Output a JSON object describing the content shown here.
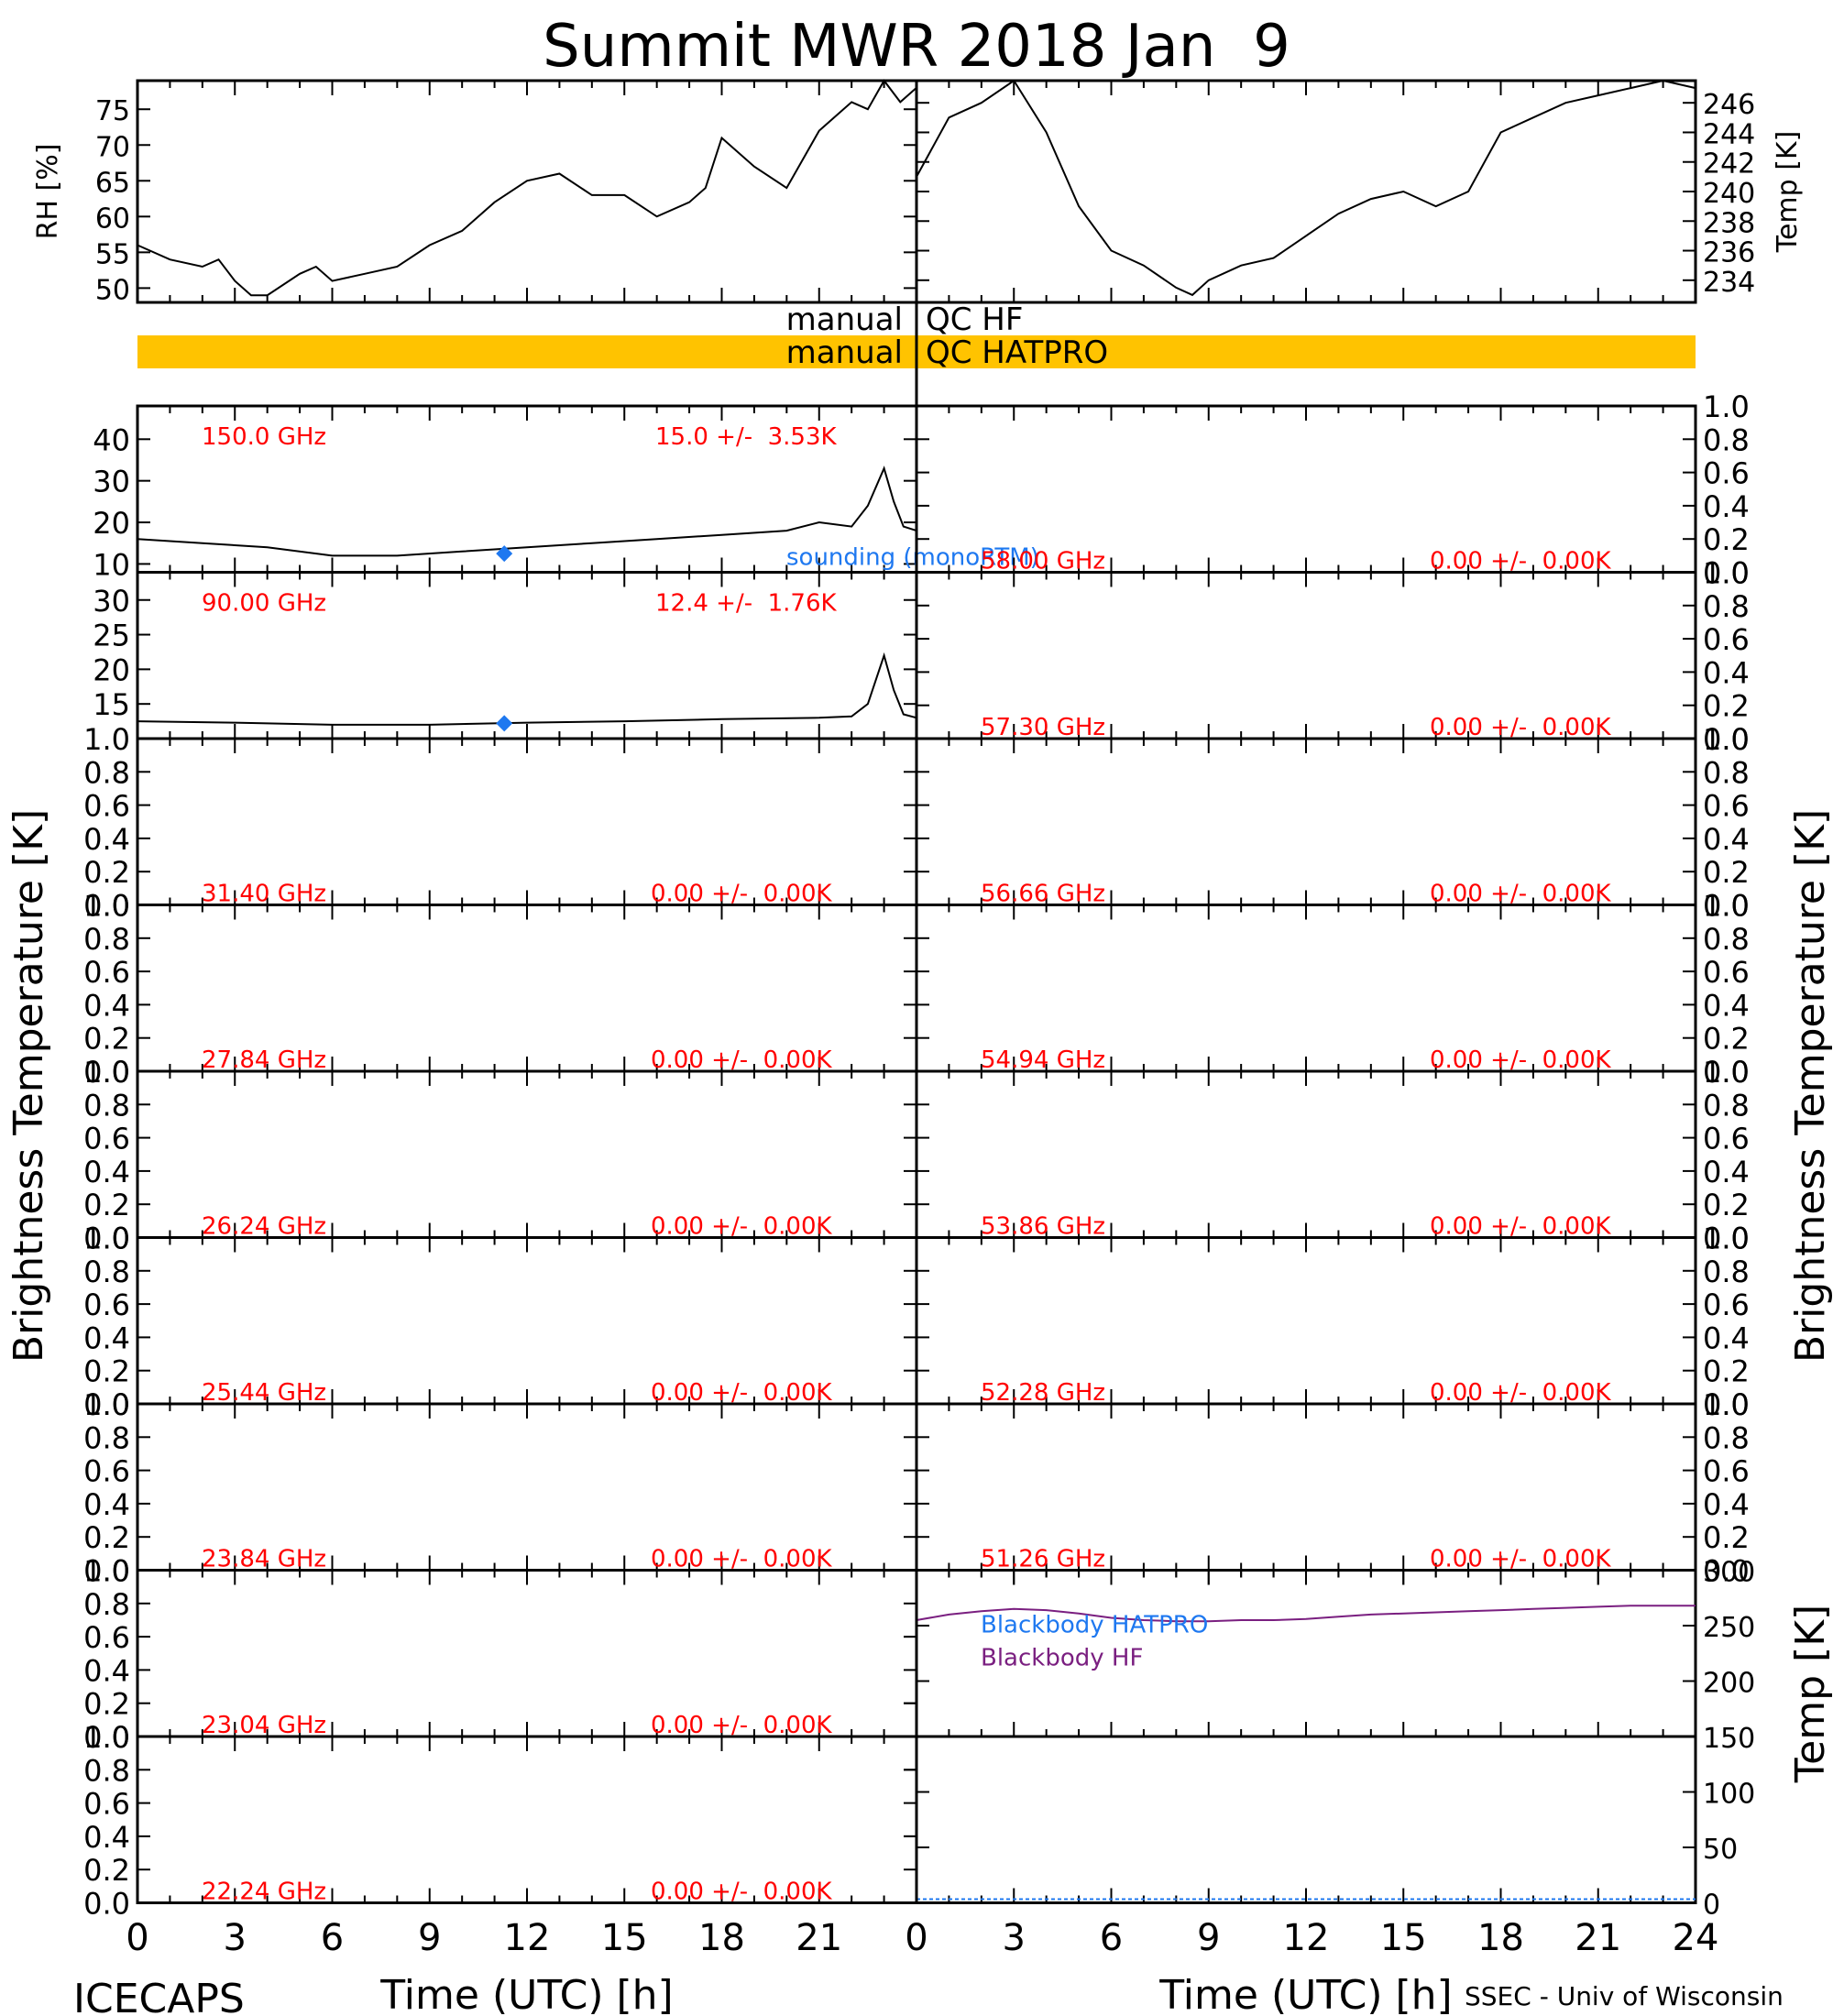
{
  "title": "Summit MWR 2018 Jan  9",
  "footer": {
    "left": "ICECAPS",
    "right": "SSEC - Univ of Wisconsin"
  },
  "axes": {
    "xlabel": "Time (UTC) [h]",
    "left_ticks": [
      "0",
      "3",
      "6",
      "9",
      "12",
      "15",
      "18",
      "21"
    ],
    "right_ticks": [
      "0",
      "3",
      "6",
      "9",
      "12",
      "15",
      "18",
      "21",
      "24"
    ],
    "bt_label": "Brightness Temperature [K]"
  },
  "qc": {
    "hf_left": "manual",
    "hf_right": "QC HF",
    "hatpro_left": "manual",
    "hatpro_right": "QC HATPRO",
    "hatpro_color": "#ffc300"
  },
  "colors": {
    "freq_text": "#ff0000",
    "sounding": "#1e78f0",
    "blackbody_hf": "#7a1f80"
  },
  "chart_data": [
    {
      "type": "line",
      "panel": "rh",
      "ylabel": "RH [%]",
      "ylim": [
        48,
        79
      ],
      "yticks": [
        "50",
        "55",
        "60",
        "65",
        "70",
        "75"
      ],
      "x": [
        0,
        1,
        2,
        2.5,
        3,
        3.5,
        4,
        5,
        5.5,
        6,
        7,
        8,
        9,
        10,
        11,
        12,
        13,
        14,
        15,
        16,
        17,
        17.5,
        18,
        19,
        20,
        21,
        22,
        22.5,
        23,
        23.5,
        24
      ],
      "y": [
        56,
        54,
        53,
        54,
        51,
        49,
        49,
        52,
        53,
        51,
        52,
        53,
        56,
        58,
        62,
        65,
        66,
        63,
        63,
        60,
        62,
        64,
        71,
        67,
        64,
        72,
        76,
        75,
        79,
        76,
        78
      ]
    },
    {
      "type": "line",
      "panel": "temp",
      "ylabel": "Temp [K]",
      "ylim": [
        232.5,
        247.5
      ],
      "yticks": [
        "234",
        "236",
        "238",
        "240",
        "242",
        "244",
        "246"
      ],
      "x": [
        0,
        1,
        2,
        3,
        4,
        5,
        6,
        7,
        8,
        8.5,
        9,
        10,
        11,
        12,
        13,
        14,
        15,
        16,
        17,
        18,
        19,
        20,
        21,
        22,
        23,
        24
      ],
      "y": [
        241,
        245,
        246,
        247.5,
        244,
        239,
        236,
        235,
        233.5,
        233,
        234,
        235,
        235.5,
        237,
        238.5,
        239.5,
        240,
        239,
        240,
        244,
        245,
        246,
        246.5,
        247,
        247.5,
        247
      ]
    },
    {
      "type": "line",
      "panel": "tb-150",
      "label": "150.0 GHz",
      "stat": "15.0 +/-  3.53K",
      "ylim": [
        8,
        48
      ],
      "yticks": [
        "10",
        "20",
        "30",
        "40"
      ],
      "x": [
        0,
        2,
        4,
        6,
        8,
        10,
        12,
        14,
        16,
        18,
        20,
        21,
        22,
        22.5,
        23,
        23.3,
        23.6,
        24
      ],
      "y": [
        16,
        15,
        14,
        12,
        12,
        13,
        14,
        15,
        16,
        17,
        18,
        20,
        19,
        24,
        33,
        25,
        19,
        18
      ],
      "sounding": {
        "x": 11.3,
        "y": 12.5,
        "label": "sounding (monoRTM)"
      }
    },
    {
      "type": "line",
      "panel": "tb-90",
      "label": "90.00 GHz",
      "stat": "12.4 +/-  1.76K",
      "ylim": [
        10,
        34
      ],
      "yticks": [
        "15",
        "20",
        "25",
        "30"
      ],
      "x": [
        0,
        3,
        6,
        9,
        12,
        15,
        18,
        21,
        22,
        22.5,
        23,
        23.3,
        23.6,
        24
      ],
      "y": [
        12.5,
        12.3,
        12,
        12,
        12.3,
        12.5,
        12.8,
        13,
        13.2,
        15,
        22,
        17,
        13.5,
        13
      ],
      "sounding": {
        "x": 11.3,
        "y": 12.2
      }
    },
    {
      "type": "line",
      "panel": "empty",
      "label": "58.00 GHz",
      "stat": "0.00 +/-  0.00K",
      "x": [],
      "y": []
    },
    {
      "type": "line",
      "panel": "empty",
      "label": "57.30 GHz",
      "stat": "0.00 +/-  0.00K",
      "x": [],
      "y": []
    },
    {
      "type": "line",
      "panel": "empty",
      "label": "31.40 GHz",
      "stat": "0.00 +/-  0.00K",
      "x": [],
      "y": []
    },
    {
      "type": "line",
      "panel": "empty",
      "label": "56.66 GHz",
      "stat": "0.00 +/-  0.00K",
      "x": [],
      "y": []
    },
    {
      "type": "line",
      "panel": "empty",
      "label": "27.84 GHz",
      "stat": "0.00 +/-  0.00K",
      "x": [],
      "y": []
    },
    {
      "type": "line",
      "panel": "empty",
      "label": "54.94 GHz",
      "stat": "0.00 +/-  0.00K",
      "x": [],
      "y": []
    },
    {
      "type": "line",
      "panel": "empty",
      "label": "26.24 GHz",
      "stat": "0.00 +/-  0.00K",
      "x": [],
      "y": []
    },
    {
      "type": "line",
      "panel": "empty",
      "label": "53.86 GHz",
      "stat": "0.00 +/-  0.00K",
      "x": [],
      "y": []
    },
    {
      "type": "line",
      "panel": "empty",
      "label": "25.44 GHz",
      "stat": "0.00 +/-  0.00K",
      "x": [],
      "y": []
    },
    {
      "type": "line",
      "panel": "empty",
      "label": "52.28 GHz",
      "stat": "0.00 +/-  0.00K",
      "x": [],
      "y": []
    },
    {
      "type": "line",
      "panel": "empty",
      "label": "23.84 GHz",
      "stat": "0.00 +/-  0.00K",
      "x": [],
      "y": []
    },
    {
      "type": "line",
      "panel": "empty",
      "label": "51.26 GHz",
      "stat": "0.00 +/-  0.00K",
      "x": [],
      "y": []
    },
    {
      "type": "line",
      "panel": "empty",
      "label": "23.04 GHz",
      "stat": "0.00 +/-  0.00K",
      "x": [],
      "y": []
    },
    {
      "type": "line",
      "panel": "empty",
      "label": "22.24 GHz",
      "stat": "0.00 +/-  0.00K",
      "x": [],
      "y": []
    },
    {
      "type": "line",
      "panel": "blackbody",
      "ylabel": "Temp [K]",
      "ylim": [
        0,
        300
      ],
      "yticks": [
        "0",
        "50",
        "100",
        "150",
        "200",
        "250",
        "300"
      ],
      "empty_yticks": [
        "0.0",
        "0.2",
        "0.4",
        "0.6",
        "0.8",
        "1.0"
      ],
      "series": [
        {
          "name": "Blackbody HATPRO",
          "x": [],
          "y": []
        },
        {
          "name": "Blackbody HF",
          "x": [
            0,
            1,
            2,
            3,
            4,
            5,
            6,
            7,
            8,
            9,
            10,
            11,
            12,
            13,
            14,
            15,
            16,
            17,
            18,
            19,
            20,
            21,
            22,
            23,
            24
          ],
          "y": [
            255,
            260,
            263,
            265,
            264,
            261,
            257,
            255,
            254,
            254,
            255,
            255,
            256,
            258,
            260,
            261,
            262,
            263,
            264,
            265,
            266,
            267,
            268,
            268,
            268
          ]
        }
      ]
    }
  ]
}
